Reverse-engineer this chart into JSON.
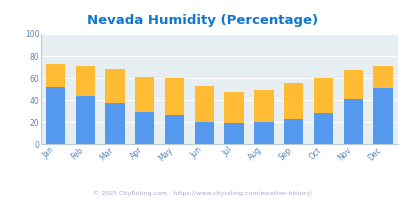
{
  "months": [
    "Jan",
    "Feb",
    "Mar",
    "Apr",
    "May",
    "Jun",
    "Jul",
    "Aug",
    "Sep",
    "Oct",
    "Nov",
    "Dec"
  ],
  "humidity_pm": [
    52,
    44,
    37,
    29,
    26,
    20,
    19,
    20,
    23,
    28,
    41,
    51
  ],
  "humidity_total": [
    73,
    71,
    68,
    61,
    60,
    53,
    47,
    49,
    55,
    60,
    67,
    71
  ],
  "color_am": "#FFBB33",
  "color_pm": "#5599EE",
  "bg_plot": "#E6EEF2",
  "bg_fig": "#FFFFFF",
  "title": "Nevada Humidity (Percentage)",
  "title_color": "#1177CC",
  "legend_text_color": "#333333",
  "footer": "© 2025 CityRating.com - https://www.cityrating.com/weather-history/",
  "footer_color": "#AAAACC",
  "ylim": [
    0,
    100
  ],
  "yticks": [
    0,
    20,
    40,
    60,
    80,
    100
  ],
  "tick_color": "#5588BB",
  "grid_color": "#FFFFFF",
  "spine_color": "#BBCCCC"
}
